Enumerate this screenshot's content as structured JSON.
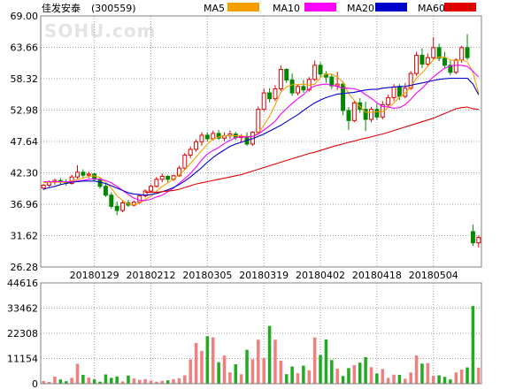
{
  "stock": {
    "name": "佳发安泰",
    "code": "(300559)"
  },
  "watermark": "SOHU.com",
  "legend": [
    {
      "label": "MA5",
      "color": "#f5a000"
    },
    {
      "label": "MA10",
      "color": "#ff00ff"
    },
    {
      "label": "MA20",
      "color": "#0000cc"
    },
    {
      "label": "MA60",
      "color": "#e00000"
    }
  ],
  "colors": {
    "up": "#e00000",
    "down": "#008800",
    "up_bar": "#f08080",
    "down_bar": "#22aa22",
    "grid": "#a0a0a0",
    "frame": "#808080"
  },
  "chart_data": [
    {
      "type": "candlestick",
      "title": "",
      "y_ticks": [
        "69.00",
        "63.66",
        "58.32",
        "52.98",
        "47.64",
        "42.30",
        "36.96",
        "31.62",
        "26.28"
      ],
      "ylim": [
        26.28,
        69.0
      ],
      "x_labels": [
        "20180129",
        "20180212",
        "20180305",
        "20180319",
        "20180402",
        "20180418",
        "20180504"
      ],
      "x_label_index": [
        9,
        19,
        29,
        39,
        49,
        59,
        69
      ],
      "ohlc": [
        [
          39.7,
          40.4,
          39.4,
          40.2
        ],
        [
          40.2,
          41.0,
          39.9,
          40.7
        ],
        [
          40.7,
          41.3,
          40.3,
          41.0
        ],
        [
          41.0,
          41.4,
          40.4,
          40.8
        ],
        [
          40.8,
          41.2,
          40.1,
          40.5
        ],
        [
          40.5,
          42.0,
          40.3,
          41.6
        ],
        [
          41.6,
          43.6,
          41.3,
          42.4
        ],
        [
          42.4,
          42.9,
          41.5,
          41.9
        ],
        [
          41.9,
          42.5,
          41.4,
          42.1
        ],
        [
          42.1,
          42.3,
          40.9,
          41.2
        ],
        [
          41.2,
          41.5,
          39.6,
          40.0
        ],
        [
          40.0,
          40.4,
          38.2,
          38.5
        ],
        [
          38.5,
          39.0,
          36.2,
          36.6
        ],
        [
          36.6,
          37.4,
          35.1,
          35.9
        ],
        [
          35.9,
          37.6,
          35.6,
          37.2
        ],
        [
          37.2,
          37.7,
          36.5,
          36.8
        ],
        [
          36.8,
          37.6,
          36.6,
          37.3
        ],
        [
          37.3,
          38.6,
          37.1,
          38.4
        ],
        [
          38.4,
          39.5,
          38.1,
          39.2
        ],
        [
          39.2,
          40.3,
          38.9,
          40.0
        ],
        [
          40.0,
          41.6,
          39.8,
          41.2
        ],
        [
          41.2,
          42.2,
          40.7,
          41.7
        ],
        [
          41.7,
          41.9,
          40.7,
          41.2
        ],
        [
          41.2,
          42.0,
          40.9,
          41.8
        ],
        [
          41.8,
          43.5,
          41.6,
          43.1
        ],
        [
          43.1,
          45.7,
          42.8,
          45.3
        ],
        [
          45.3,
          46.8,
          44.8,
          46.3
        ],
        [
          46.3,
          48.0,
          45.9,
          47.6
        ],
        [
          47.6,
          49.2,
          46.9,
          48.7
        ],
        [
          48.7,
          49.2,
          47.6,
          48.1
        ],
        [
          48.1,
          49.5,
          47.8,
          49.0
        ],
        [
          49.0,
          49.6,
          47.9,
          48.2
        ],
        [
          48.2,
          49.2,
          47.7,
          48.6
        ],
        [
          48.6,
          49.5,
          48.1,
          48.9
        ],
        [
          48.9,
          49.3,
          47.9,
          48.3
        ],
        [
          48.3,
          48.9,
          47.5,
          48.5
        ],
        [
          48.5,
          49.2,
          46.9,
          47.2
        ],
        [
          47.2,
          49.4,
          46.9,
          49.2
        ],
        [
          49.2,
          53.6,
          49.0,
          53.1
        ],
        [
          53.1,
          56.6,
          52.8,
          55.9
        ],
        [
          55.9,
          56.7,
          54.3,
          54.9
        ],
        [
          54.9,
          57.2,
          54.5,
          56.6
        ],
        [
          56.6,
          60.6,
          56.2,
          59.9
        ],
        [
          59.9,
          60.1,
          57.6,
          58.1
        ],
        [
          58.1,
          59.2,
          55.4,
          55.9
        ],
        [
          55.9,
          57.4,
          55.5,
          57.0
        ],
        [
          57.0,
          58.1,
          55.9,
          56.4
        ],
        [
          56.4,
          58.6,
          56.1,
          58.2
        ],
        [
          58.2,
          61.4,
          57.9,
          60.6
        ],
        [
          60.6,
          61.1,
          58.6,
          59.1
        ],
        [
          59.1,
          59.6,
          57.6,
          58.6
        ],
        [
          58.6,
          59.1,
          56.6,
          57.1
        ],
        [
          57.1,
          59.5,
          56.4,
          57.4
        ],
        [
          57.4,
          57.9,
          52.1,
          52.9
        ],
        [
          52.9,
          53.5,
          49.6,
          51.2
        ],
        [
          51.2,
          54.6,
          50.9,
          54.2
        ],
        [
          54.2,
          55.0,
          52.5,
          53.1
        ],
        [
          53.1,
          54.4,
          49.4,
          51.4
        ],
        [
          51.4,
          53.5,
          50.9,
          53.1
        ],
        [
          53.1,
          54.0,
          51.3,
          51.8
        ],
        [
          51.8,
          54.5,
          51.4,
          53.9
        ],
        [
          53.9,
          55.6,
          53.4,
          55.1
        ],
        [
          55.1,
          57.4,
          54.5,
          56.9
        ],
        [
          56.9,
          57.4,
          54.7,
          55.3
        ],
        [
          55.3,
          57.6,
          55.0,
          56.7
        ],
        [
          56.7,
          59.6,
          56.4,
          59.2
        ],
        [
          59.2,
          62.9,
          58.8,
          62.3
        ],
        [
          62.3,
          63.5,
          60.1,
          60.8
        ],
        [
          60.8,
          62.6,
          60.4,
          61.9
        ],
        [
          61.9,
          65.4,
          61.5,
          63.6
        ],
        [
          63.6,
          64.3,
          61.3,
          61.8
        ],
        [
          61.8,
          62.9,
          60.1,
          60.6
        ],
        [
          60.6,
          61.5,
          58.9,
          59.4
        ],
        [
          59.4,
          61.8,
          59.1,
          61.5
        ],
        [
          61.5,
          63.9,
          61.0,
          63.6
        ],
        [
          63.6,
          65.9,
          61.5,
          61.9
        ],
        [
          32.3,
          33.5,
          29.9,
          30.4
        ],
        [
          30.4,
          31.6,
          29.6,
          31.3
        ]
      ],
      "ma": {
        "MA5": [
          40.6,
          40.7,
          40.7,
          40.7,
          40.7,
          40.9,
          41.2,
          41.4,
          41.7,
          41.8,
          41.5,
          40.7,
          39.7,
          38.4,
          37.6,
          37.0,
          36.9,
          37.1,
          37.8,
          38.3,
          39.2,
          40.0,
          40.6,
          41.2,
          42.0,
          42.8,
          43.9,
          45.0,
          46.1,
          47.2,
          48.0,
          48.4,
          48.6,
          48.6,
          48.6,
          48.6,
          48.4,
          48.5,
          49.1,
          50.4,
          51.9,
          53.9,
          56.0,
          56.9,
          57.3,
          57.3,
          57.4,
          57.2,
          57.4,
          58.5,
          59.1,
          59.1,
          58.6,
          57.7,
          55.8,
          54.6,
          53.6,
          52.6,
          52.6,
          52.7,
          52.7,
          53.4,
          54.2,
          55.2,
          55.9,
          56.9,
          58.4,
          59.3,
          60.4,
          61.6,
          62.0,
          62.0,
          61.5,
          61.4,
          61.5,
          61.2,
          59.4,
          55.8
        ],
        "MA10": [
          40.8,
          40.8,
          40.8,
          40.8,
          40.8,
          40.8,
          40.9,
          41.0,
          41.2,
          41.3,
          41.2,
          41.0,
          40.6,
          40.0,
          39.3,
          38.6,
          38.0,
          37.6,
          37.6,
          37.8,
          38.2,
          38.5,
          39.1,
          39.7,
          40.5,
          41.3,
          42.2,
          43.3,
          44.5,
          45.5,
          46.1,
          46.6,
          47.3,
          47.8,
          48.3,
          48.4,
          48.4,
          48.5,
          48.9,
          49.6,
          50.3,
          51.1,
          52.3,
          53.2,
          54.1,
          54.9,
          55.6,
          56.6,
          57.1,
          57.3,
          57.4,
          57.2,
          57.0,
          56.7,
          56.7,
          56.6,
          56.3,
          55.6,
          55.0,
          54.2,
          53.6,
          53.5,
          53.3,
          53.4,
          53.9,
          54.8,
          55.9,
          56.7,
          57.7,
          58.6,
          59.4,
          60.1,
          60.5,
          60.6,
          60.6,
          60.4,
          59.6,
          58.6
        ],
        "MA20": [
          39.5,
          39.8,
          40.0,
          40.3,
          40.5,
          40.7,
          40.8,
          40.9,
          40.9,
          40.9,
          40.7,
          40.5,
          40.1,
          39.7,
          39.3,
          38.9,
          38.7,
          38.6,
          38.5,
          38.6,
          38.8,
          39.1,
          39.4,
          39.8,
          40.3,
          40.9,
          41.6,
          42.4,
          43.2,
          44.1,
          44.9,
          45.6,
          46.2,
          46.8,
          47.2,
          47.5,
          47.8,
          48.1,
          48.5,
          48.9,
          49.4,
          49.9,
          50.4,
          51.0,
          51.6,
          52.2,
          52.9,
          53.6,
          54.2,
          54.7,
          55.1,
          55.4,
          55.7,
          55.8,
          55.9,
          56.0,
          56.2,
          56.4,
          56.5,
          56.5,
          56.7,
          56.8,
          56.9,
          57.0,
          57.0,
          57.2,
          57.4,
          57.6,
          57.8,
          58.0,
          58.2,
          58.3,
          58.4,
          58.4,
          58.4,
          58.4,
          57.4,
          55.6
        ],
        "MA60": [
          null,
          null,
          null,
          null,
          null,
          null,
          null,
          null,
          null,
          null,
          null,
          null,
          null,
          null,
          null,
          null,
          null,
          null,
          39.0,
          39.0,
          39.0,
          39.1,
          39.2,
          39.3,
          39.5,
          39.8,
          40.1,
          40.4,
          40.6,
          40.8,
          41.0,
          41.2,
          41.4,
          41.6,
          41.8,
          42.0,
          42.3,
          42.6,
          42.9,
          43.2,
          43.5,
          43.8,
          44.1,
          44.4,
          44.7,
          45.0,
          45.3,
          45.6,
          45.8,
          46.1,
          46.4,
          46.7,
          47.0,
          47.2,
          47.5,
          47.7,
          48.0,
          48.2,
          48.4,
          48.7,
          48.9,
          49.2,
          49.5,
          49.8,
          50.1,
          50.4,
          50.7,
          51.0,
          51.3,
          51.6,
          52.0,
          52.4,
          52.8,
          53.2,
          53.4,
          53.5,
          53.2,
          53.1
        ]
      }
    },
    {
      "type": "bar",
      "title": "",
      "y_ticks": [
        "44616",
        "33462",
        "22308",
        "11154",
        "0"
      ],
      "ylim": [
        0,
        44616
      ],
      "values": [
        1200,
        800,
        3100,
        1900,
        1100,
        2600,
        8800,
        3900,
        2700,
        1900,
        900,
        4100,
        2600,
        3200,
        1000,
        3600,
        2300,
        1700,
        2000,
        1400,
        900,
        1200,
        1500,
        2000,
        2400,
        3700,
        10800,
        18000,
        14500,
        21000,
        20500,
        9500,
        12500,
        5000,
        8600,
        4200,
        15000,
        10800,
        19500,
        11300,
        25600,
        19500,
        10200,
        4200,
        7600,
        4600,
        8000,
        5900,
        20500,
        12700,
        19600,
        10500,
        6700,
        3400,
        6900,
        8200,
        9300,
        11800,
        7300,
        4500,
        6500,
        2600,
        4000,
        3900,
        2200,
        5000,
        12500,
        8900,
        9100,
        3500,
        3700,
        3000,
        1900,
        5000,
        6300,
        7200,
        34400,
        7100
      ],
      "up": [
        true,
        true,
        true,
        false,
        false,
        true,
        true,
        false,
        true,
        false,
        false,
        false,
        false,
        false,
        true,
        false,
        true,
        true,
        true,
        true,
        true,
        true,
        false,
        true,
        true,
        true,
        true,
        true,
        true,
        false,
        true,
        false,
        true,
        true,
        false,
        true,
        false,
        true,
        true,
        true,
        false,
        true,
        true,
        false,
        false,
        true,
        false,
        true,
        true,
        false,
        false,
        false,
        true,
        false,
        false,
        true,
        false,
        false,
        true,
        false,
        true,
        true,
        true,
        false,
        true,
        true,
        true,
        false,
        true,
        true,
        false,
        false,
        false,
        true,
        true,
        false,
        false,
        true
      ]
    }
  ]
}
